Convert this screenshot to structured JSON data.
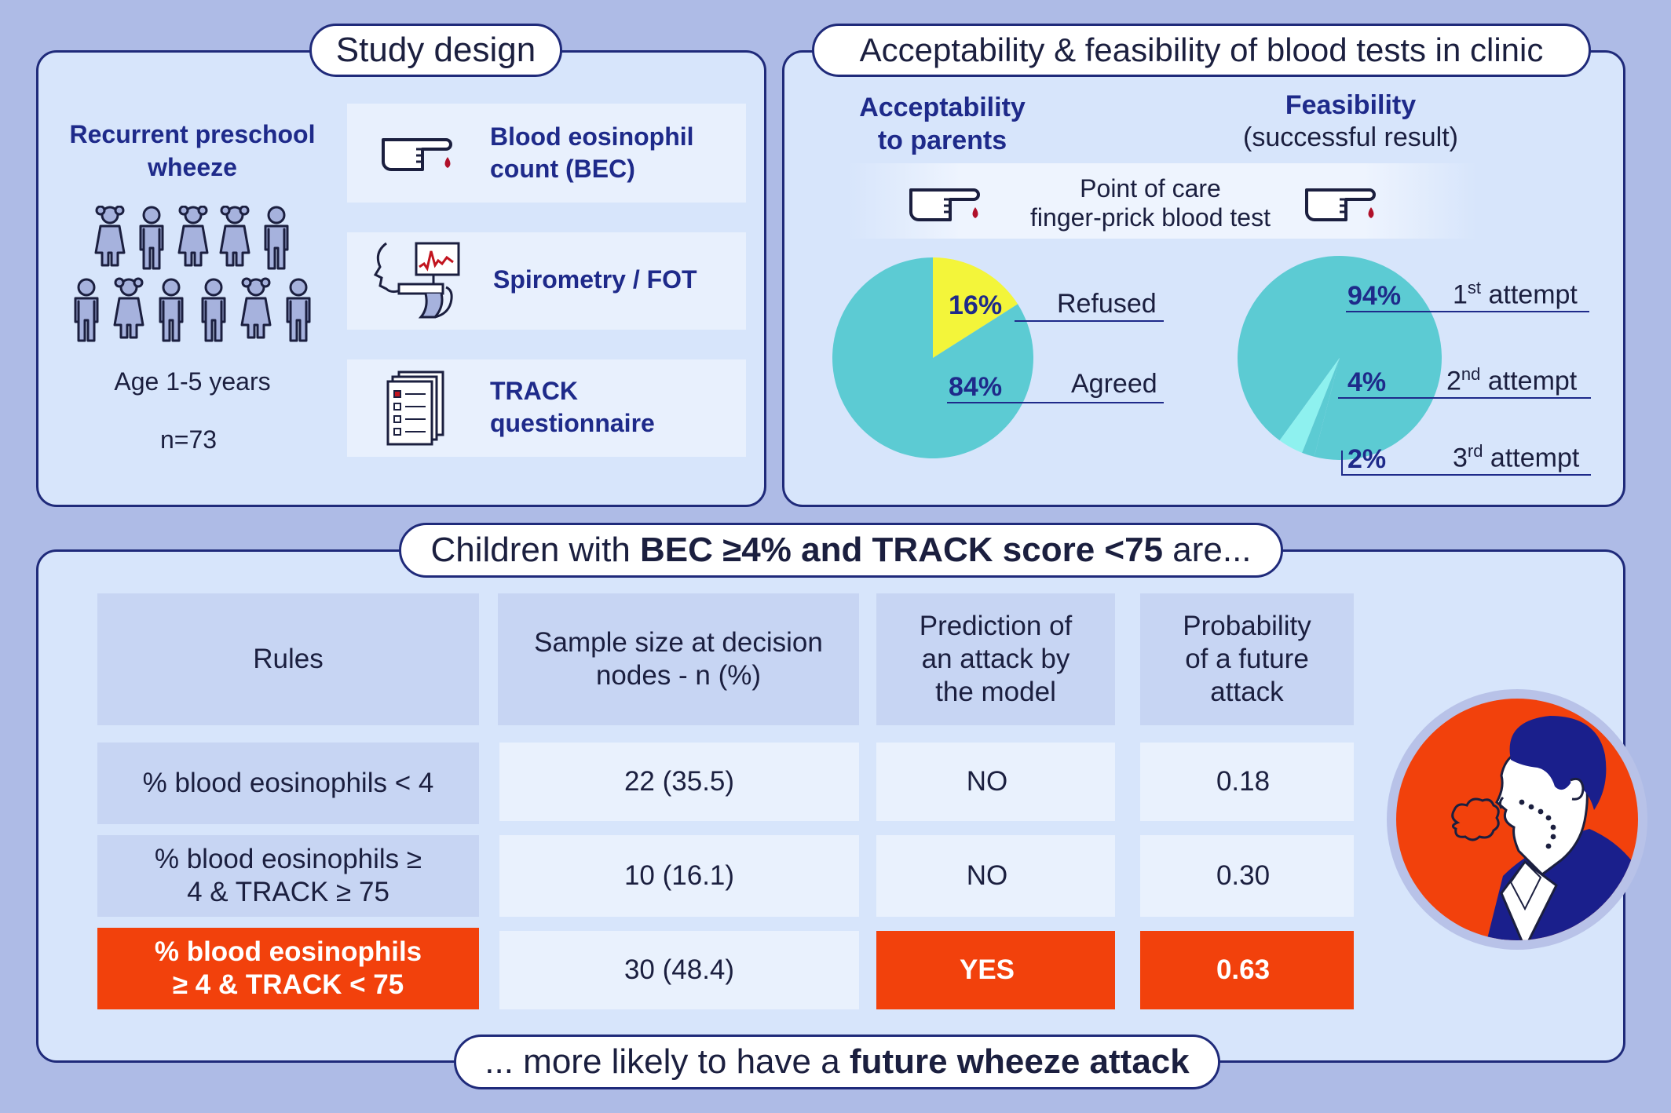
{
  "study_design": {
    "title": "Study design",
    "population_line1": "Recurrent preschool",
    "population_line2": "wheeze",
    "age": "Age 1-5 years",
    "n": "n=73",
    "items": [
      {
        "line1": "Blood eosinophil",
        "line2": "count (BEC)",
        "icon": "finger-prick-icon"
      },
      {
        "line1": "Spirometry / FOT",
        "line2": "",
        "icon": "spirometry-icon"
      },
      {
        "line1": "TRACK",
        "line2": "questionnaire",
        "icon": "questionnaire-icon"
      }
    ]
  },
  "acceptability": {
    "title": "Acceptability & feasibility of blood tests in clinic",
    "left_heading_line1": "Acceptability",
    "left_heading_line2": "to parents",
    "right_heading_line1": "Feasibility",
    "right_heading_line2": "(successful result)",
    "banner_line1": "Point of care",
    "banner_line2": "finger-prick blood test",
    "colors": {
      "teal": "#5ccbd3",
      "yellow": "#f3f53a",
      "light_teal": "#8ef1ef"
    }
  },
  "chart_data": [
    {
      "type": "pie",
      "title": "Acceptability to parents",
      "slices": [
        {
          "label": "Refused",
          "value": 16,
          "display": "16%",
          "color": "#f3f53a"
        },
        {
          "label": "Agreed",
          "value": 84,
          "display": "84%",
          "color": "#5ccbd3"
        }
      ]
    },
    {
      "type": "pie",
      "title": "Feasibility (successful result)",
      "slices": [
        {
          "label": "1st attempt",
          "value": 94,
          "display": "94%",
          "color": "#5ccbd3",
          "ordinal": "1",
          "suffix": "st",
          "rest": " attempt"
        },
        {
          "label": "2nd attempt",
          "value": 4,
          "display": "4%",
          "color": "#8ef1ef",
          "ordinal": "2",
          "suffix": "nd",
          "rest": " attempt"
        },
        {
          "label": "3rd attempt",
          "value": 2,
          "display": "2%",
          "color": "#5ccbd3",
          "ordinal": "3",
          "suffix": "rd",
          "rest": " attempt"
        }
      ]
    }
  ],
  "bottom": {
    "title_prefix": "Children with ",
    "title_bold": "BEC ≥4% and TRACK score <75",
    "title_suffix": " are...",
    "footer_prefix": "... more likely to have a ",
    "footer_bold": "future wheeze attack",
    "accent_color": "#f2410c"
  },
  "table": {
    "headers": [
      "Rules",
      "Sample size at decision nodes - n (%)",
      "Prediction of an attack by the model",
      "Probability of a future attack"
    ],
    "rows": [
      {
        "rule": "% blood eosinophils < 4",
        "sample": "22 (35.5)",
        "prediction": "NO",
        "probability": "0.18",
        "highlight": false
      },
      {
        "rule": "% blood eosinophils ≥ 4 & TRACK ≥ 75",
        "sample": "10 (16.1)",
        "prediction": "NO",
        "probability": "0.30",
        "highlight": false
      },
      {
        "rule": "% blood eosinophils ≥ 4 & TRACK < 75",
        "sample": "30 (48.4)",
        "prediction": "YES",
        "probability": "0.63",
        "highlight": true
      }
    ]
  }
}
